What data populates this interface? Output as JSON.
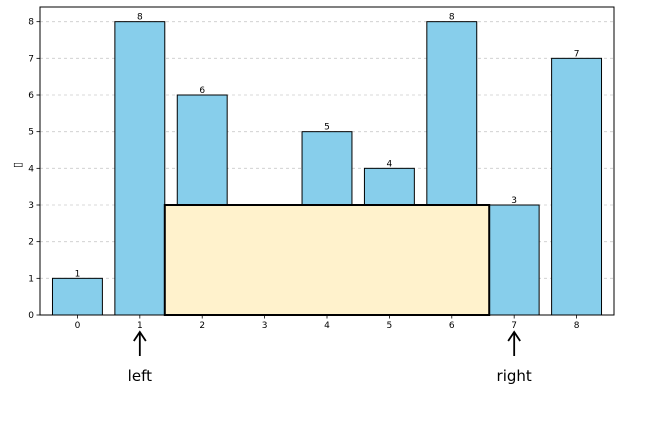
{
  "chart_data": {
    "type": "bar",
    "categories": [
      "0",
      "1",
      "2",
      "3",
      "4",
      "5",
      "6",
      "7",
      "8"
    ],
    "values": [
      1,
      8,
      6,
      0,
      5,
      4,
      8,
      3,
      7
    ],
    "data_labels": [
      "1",
      "8",
      "6",
      "",
      "5",
      "4",
      "8",
      "3",
      "7"
    ],
    "ylabel": "▯",
    "ylim": [
      0,
      8.4
    ],
    "yticks": [
      "0",
      "1",
      "2",
      "3",
      "4",
      "5",
      "6",
      "7",
      "8"
    ],
    "grid": "y-dashed",
    "bar_color": "#87ceeb",
    "highlight_rect": {
      "x_from": 1.4,
      "x_to": 6.6,
      "height": 3,
      "fill": "#fff2cc",
      "stroke": "#000000"
    },
    "annotations": [
      {
        "text": "left",
        "x": 1
      },
      {
        "text": "right",
        "x": 7
      }
    ]
  }
}
